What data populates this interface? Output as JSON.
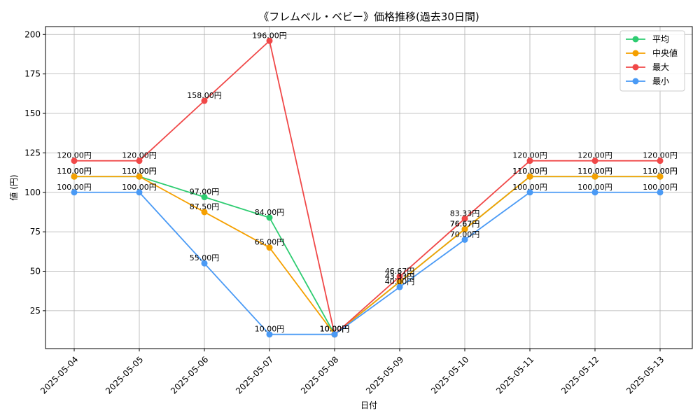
{
  "chart_data": {
    "type": "line",
    "title": "《フレムベル・ベビー》価格推移(過去30日間)",
    "xlabel": "日付",
    "ylabel": "値 (円)",
    "unit_suffix": "円",
    "categories": [
      "2025-05-04",
      "2025-05-05",
      "2025-05-06",
      "2025-05-07",
      "2025-05-08",
      "2025-05-09",
      "2025-05-10",
      "2025-05-11",
      "2025-05-12",
      "2025-05-13"
    ],
    "ylim": [
      1,
      205
    ],
    "yticks": [
      25,
      50,
      75,
      100,
      125,
      150,
      175,
      200
    ],
    "grid": true,
    "legend_position": "top-right",
    "series": [
      {
        "name": "平均",
        "color": "#2ecc71",
        "values": [
          110.0,
          110.0,
          97.0,
          84.0,
          10.0,
          43.33,
          76.67,
          110.0,
          110.0,
          110.0
        ],
        "labels": [
          "110.00円",
          "110.00円",
          "97.00円",
          "84.00円",
          "10.00円",
          "43.33円",
          "76.67円",
          "110.00円",
          "110.00円",
          "110.00円"
        ]
      },
      {
        "name": "中央値",
        "color": "#f5a000",
        "values": [
          110.0,
          110.0,
          87.5,
          65.0,
          10.0,
          43.33,
          76.67,
          110.0,
          110.0,
          110.0
        ],
        "labels": [
          "110.00円",
          "110.00円",
          "87.50円",
          "65.00円",
          "10.00円",
          "43.33円",
          "76.67円",
          "110.00円",
          "110.00円",
          "110.00円"
        ]
      },
      {
        "name": "最大",
        "color": "#f04848",
        "values": [
          120.0,
          120.0,
          158.0,
          196.0,
          10.0,
          46.67,
          83.33,
          120.0,
          120.0,
          120.0
        ],
        "labels": [
          "120.00円",
          "120.00円",
          "158.00円",
          "196.00円",
          "10.00円",
          "46.67円",
          "83.33円",
          "120.00円",
          "120.00円",
          "120.00円"
        ]
      },
      {
        "name": "最小",
        "color": "#4a9af5",
        "values": [
          100.0,
          100.0,
          55.0,
          10.0,
          10.0,
          40.0,
          70.0,
          100.0,
          100.0,
          100.0
        ],
        "labels": [
          "100.00円",
          "100.00円",
          "55.00円",
          "10.00円",
          "10.00円",
          "40.00円",
          "70.00円",
          "100.00円",
          "100.00円",
          "100.00円"
        ]
      }
    ]
  }
}
